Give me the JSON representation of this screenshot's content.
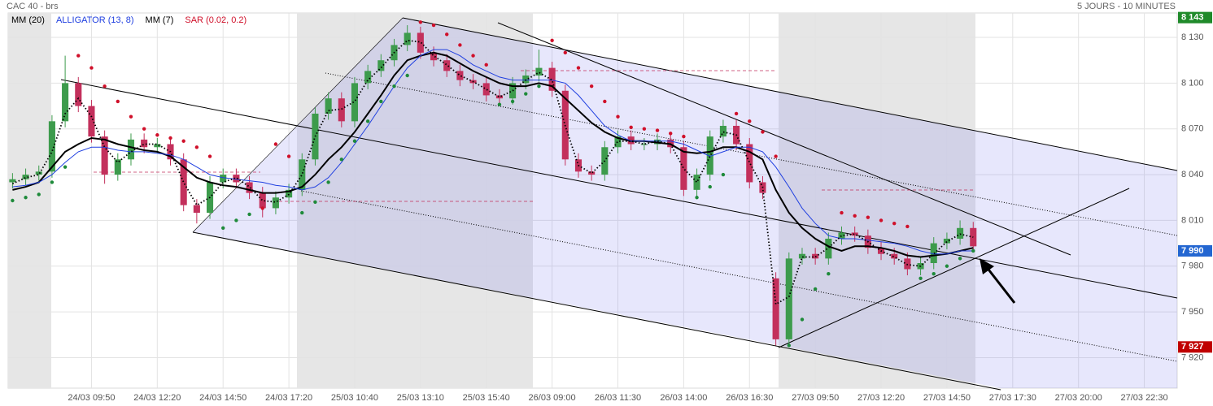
{
  "chart_data": {
    "type": "candlestick",
    "title": "CAC 40 - brs",
    "subtitle": "5 JOURS - 10 MINUTES",
    "x": [
      0,
      3,
      6,
      9,
      12,
      15,
      18,
      21,
      24,
      27,
      30,
      33,
      36,
      39,
      42,
      45,
      48,
      51,
      54,
      57,
      60,
      63,
      66,
      69,
      72,
      75,
      78,
      81,
      84,
      87,
      90,
      93,
      96,
      99,
      102,
      105,
      108,
      111,
      114,
      117,
      120,
      123,
      126,
      129,
      132,
      135,
      138,
      141,
      144,
      147,
      150,
      153,
      156,
      159,
      162,
      165,
      168,
      171,
      174,
      177,
      180,
      183,
      186,
      189,
      192,
      195,
      198,
      201,
      204,
      207,
      210,
      213,
      216,
      219
    ],
    "open": [
      8035,
      8037,
      8040,
      8042,
      8075,
      8100,
      8085,
      8065,
      8040,
      8050,
      8063,
      8058,
      8060,
      8050,
      8020,
      8015,
      8035,
      8040,
      8035,
      8028,
      8018,
      8025,
      8030,
      8050,
      8080,
      8090,
      8075,
      8100,
      8108,
      8115,
      8125,
      8133,
      8120,
      8115,
      8108,
      8102,
      8100,
      8092,
      8090,
      8100,
      8105,
      8110,
      8095,
      8050,
      8042,
      8040,
      8058,
      8065,
      8060,
      8060,
      8063,
      8058,
      8030,
      8040,
      8065,
      8072,
      8060,
      8035,
      7972,
      7932,
      7985,
      7988,
      7985,
      7998,
      8002,
      8000,
      7992,
      7988,
      7985,
      7978,
      7982,
      7995,
      7998,
      8005
    ],
    "high": [
      8041,
      8044,
      8046,
      8079,
      8118,
      8104,
      8089,
      8069,
      8054,
      8067,
      8067,
      8064,
      8064,
      8054,
      8024,
      8039,
      8044,
      8044,
      8039,
      8032,
      8029,
      8034,
      8054,
      8084,
      8094,
      8094,
      8104,
      8112,
      8119,
      8129,
      8138,
      8137,
      8124,
      8119,
      8112,
      8106,
      8104,
      8096,
      8104,
      8109,
      8122,
      8114,
      8099,
      8054,
      8046,
      8062,
      8069,
      8069,
      8064,
      8067,
      8067,
      8062,
      8044,
      8069,
      8076,
      8076,
      8064,
      8039,
      7976,
      7989,
      7992,
      7992,
      8002,
      8006,
      8006,
      8004,
      7996,
      7992,
      7989,
      7986,
      7999,
      8002,
      8010,
      8009
    ],
    "low": [
      8031,
      8033,
      8036,
      8038,
      8071,
      8081,
      8061,
      8034,
      8036,
      8046,
      8054,
      8054,
      8046,
      8016,
      8008,
      8011,
      8031,
      8031,
      8024,
      8012,
      8014,
      8021,
      8026,
      8046,
      8076,
      8071,
      8071,
      8096,
      8104,
      8111,
      8121,
      8116,
      8111,
      8104,
      8098,
      8096,
      8088,
      8086,
      8086,
      8096,
      8101,
      8091,
      8046,
      8038,
      8036,
      8036,
      8054,
      8056,
      8056,
      8056,
      8054,
      8026,
      8026,
      8036,
      8061,
      8056,
      8031,
      8024,
      7928,
      7928,
      7981,
      7981,
      7981,
      7994,
      7996,
      7988,
      7984,
      7981,
      7974,
      7974,
      7978,
      7991,
      7994,
      7989
    ],
    "close": [
      8037,
      8040,
      8042,
      8075,
      8100,
      8085,
      8065,
      8040,
      8050,
      8063,
      8058,
      8060,
      8050,
      8020,
      8015,
      8035,
      8040,
      8035,
      8028,
      8018,
      8025,
      8030,
      8050,
      8080,
      8090,
      8075,
      8100,
      8108,
      8115,
      8125,
      8133,
      8120,
      8115,
      8108,
      8102,
      8100,
      8092,
      8090,
      8100,
      8105,
      8110,
      8095,
      8050,
      8042,
      8040,
      8058,
      8065,
      8060,
      8060,
      8063,
      8058,
      8030,
      8040,
      8065,
      8072,
      8060,
      8035,
      8028,
      7932,
      7985,
      7988,
      7985,
      7998,
      8002,
      8000,
      7992,
      7988,
      7985,
      7978,
      7982,
      7995,
      7998,
      8005,
      7993
    ],
    "up_color": "#3d9b4c",
    "down_color": "#c3305c",
    "series": [
      {
        "name": "MM (20)",
        "color": "#000000",
        "style": "solid",
        "values": [
          8030,
          8032,
          8035,
          8045,
          8055,
          8060,
          8064,
          8063,
          8060,
          8058,
          8056,
          8055,
          8052,
          8045,
          8038,
          8035,
          8033,
          8032,
          8030,
          8028,
          8028,
          8029,
          8032,
          8040,
          8050,
          8058,
          8068,
          8080,
          8092,
          8105,
          8115,
          8118,
          8120,
          8118,
          8113,
          8108,
          8104,
          8100,
          8098,
          8098,
          8100,
          8098,
          8090,
          8082,
          8074,
          8068,
          8064,
          8062,
          8062,
          8061,
          8060,
          8055,
          8054,
          8055,
          8058,
          8058,
          8055,
          8050,
          8030,
          8015,
          8005,
          7998,
          7993,
          7990,
          7993,
          7993,
          7992,
          7990,
          7987,
          7986,
          7987,
          7988,
          7990,
          7992
        ]
      },
      {
        "name": "ALLIGATOR (13, 8)",
        "color": "#1f3fe0",
        "style": "solid",
        "values": [
          8032,
          8033,
          8035,
          8040,
          8048,
          8055,
          8058,
          8058,
          8056,
          8055,
          8055,
          8054,
          8053,
          8050,
          8045,
          8040,
          8038,
          8037,
          8036,
          8035,
          8033,
          8032,
          8030,
          8032,
          8038,
          8048,
          8060,
          8072,
          8085,
          8098,
          8110,
          8118,
          8122,
          8122,
          8118,
          8112,
          8108,
          8104,
          8102,
          8102,
          8102,
          8102,
          8100,
          8092,
          8082,
          8072,
          8066,
          8062,
          8062,
          8062,
          8062,
          8060,
          8056,
          8052,
          8055,
          8058,
          8058,
          8055,
          8045,
          8032,
          8018,
          8008,
          8000,
          7998,
          7998,
          7997,
          7996,
          7995,
          7993,
          7990,
          7988,
          7988,
          7990,
          7990
        ]
      },
      {
        "name": "MM (7)",
        "color": "#000000",
        "style": "dotted",
        "values": [
          8034,
          8038,
          8040,
          8055,
          8080,
          8090,
          8078,
          8058,
          8048,
          8055,
          8060,
          8060,
          8055,
          8035,
          8020,
          8025,
          8035,
          8038,
          8032,
          8023,
          8022,
          8027,
          8040,
          8065,
          8082,
          8083,
          8088,
          8102,
          8110,
          8120,
          8128,
          8127,
          8118,
          8112,
          8105,
          8101,
          8096,
          8091,
          8095,
          8102,
          8107,
          8102,
          8072,
          8046,
          8041,
          8049,
          8062,
          8062,
          8060,
          8062,
          8060,
          8044,
          8035,
          8052,
          8068,
          8066,
          8048,
          8032,
          7955,
          7960,
          7986,
          7986,
          7992,
          8000,
          8001,
          7996,
          7990,
          7986,
          7981,
          7980,
          7988,
          7996,
          8001,
          7999
        ]
      },
      {
        "name": "SAR (0.02, 0.2)",
        "color": "#d0102a",
        "below_color": "#1e8a3a",
        "style": "dots",
        "values": [
          8023,
          8025,
          8027,
          8035,
          8045,
          8118,
          8110,
          8098,
          8088,
          8078,
          8070,
          8066,
          8064,
          8062,
          8058,
          8052,
          8005,
          8010,
          8014,
          8018,
          8060,
          8052,
          8015,
          8022,
          8035,
          8050,
          8062,
          8075,
          8088,
          8098,
          8105,
          8140,
          8138,
          8132,
          8125,
          8118,
          8112,
          8086,
          8088,
          8093,
          8098,
          8128,
          8120,
          8110,
          8098,
          8088,
          8078,
          8071,
          8070,
          8069,
          8067,
          8065,
          8025,
          8032,
          8040,
          8080,
          8075,
          8068,
          8052,
          7928,
          7945,
          7965,
          7975,
          8015,
          8013,
          8012,
          8010,
          8008,
          8006,
          7972,
          7975,
          7980,
          7985,
          7990
        ]
      }
    ],
    "xlim": [
      -1,
      265.5
    ],
    "xticks": [
      {
        "value": 18,
        "label": "24/03 09:50"
      },
      {
        "value": 33,
        "label": "24/03 12:20"
      },
      {
        "value": 48,
        "label": "24/03 14:50"
      },
      {
        "value": 63,
        "label": "24/03 17:20"
      },
      {
        "value": 78,
        "label": "25/03 10:40"
      },
      {
        "value": 93,
        "label": "25/03 13:10"
      },
      {
        "value": 108,
        "label": "25/03 15:40"
      },
      {
        "value": 123,
        "label": "26/03 09:00"
      },
      {
        "value": 138,
        "label": "26/03 11:30"
      },
      {
        "value": 153,
        "label": "26/03 14:00"
      },
      {
        "value": 168,
        "label": "26/03 16:30"
      },
      {
        "value": 183,
        "label": "27/03 09:50"
      },
      {
        "value": 198,
        "label": "27/03 12:20"
      },
      {
        "value": 213,
        "label": "27/03 14:50"
      },
      {
        "value": 228,
        "label": "27/03 17:30"
      },
      {
        "value": 243,
        "label": "27/03 20:00"
      },
      {
        "value": 258,
        "label": "27/03 22:30"
      }
    ],
    "ylim": [
      7900,
      8146
    ],
    "yticks": [
      {
        "value": 7920,
        "label": "7 920"
      },
      {
        "value": 7950,
        "label": "7 950"
      },
      {
        "value": 7980,
        "label": "7 980"
      },
      {
        "value": 8010,
        "label": "8 010"
      },
      {
        "value": 8040,
        "label": "8 040"
      },
      {
        "value": 8070,
        "label": "8 070"
      },
      {
        "value": 8100,
        "label": "8 100"
      },
      {
        "value": 8130,
        "label": "8 130"
      }
    ],
    "grid": true,
    "price_markers": [
      {
        "value": 8143,
        "label": "8 143",
        "color": "#1f8a2a"
      },
      {
        "value": 7990,
        "label": "7 990",
        "color": "#2366d1"
      },
      {
        "value": 7927,
        "label": "7 927",
        "color": "#c00000"
      }
    ]
  }
}
